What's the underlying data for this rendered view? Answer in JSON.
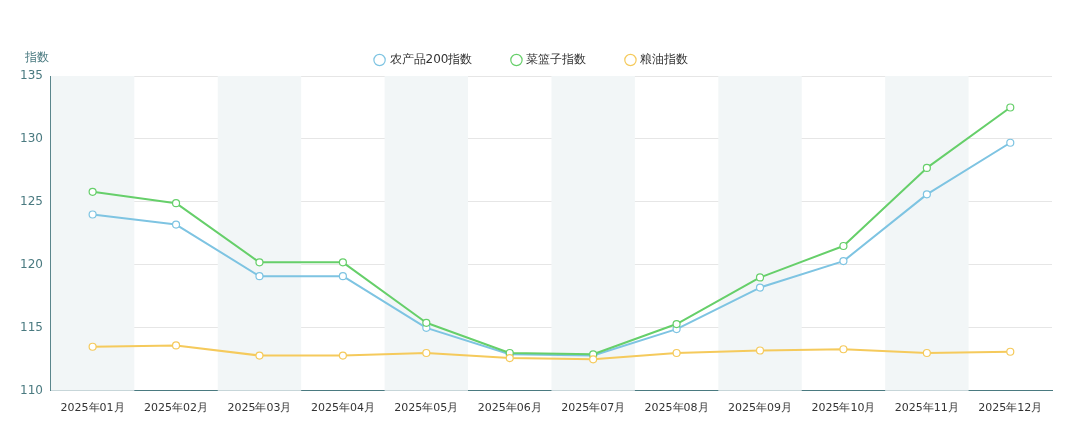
{
  "chart_data": {
    "type": "line",
    "ylabel": "指数",
    "categories": [
      "2025年01月",
      "2025年02月",
      "2025年03月",
      "2025年04月",
      "2025年05月",
      "2025年06月",
      "2025年07月",
      "2025年08月",
      "2025年09月",
      "2025年10月",
      "2025年11月",
      "2025年12月"
    ],
    "series": [
      {
        "name": "农产品200指数",
        "color": "#7ec4e2",
        "values": [
          124.0,
          123.2,
          119.1,
          119.1,
          115.0,
          112.9,
          112.8,
          114.9,
          118.2,
          120.3,
          125.6,
          129.7
        ]
      },
      {
        "name": "菜篮子指数",
        "color": "#66cf6a",
        "values": [
          125.8,
          124.9,
          120.2,
          120.2,
          115.4,
          113.0,
          112.9,
          115.3,
          119.0,
          121.5,
          127.7,
          132.5
        ]
      },
      {
        "name": "粮油指数",
        "color": "#f5ca5c",
        "values": [
          113.5,
          113.6,
          112.8,
          112.8,
          113.0,
          112.6,
          112.5,
          113.0,
          113.2,
          113.3,
          113.0,
          113.1
        ]
      }
    ],
    "ylim": [
      110,
      135
    ],
    "yticks": [
      110,
      115,
      120,
      125,
      130,
      135
    ],
    "grid": "y",
    "legend": "top",
    "marker": "circle",
    "line_style": "solid",
    "bands": [
      {
        "axis": "x",
        "from": "2025年01月",
        "to": "2025年01月",
        "color": "#f2f6f7"
      },
      {
        "axis": "x",
        "from": "2025年03月",
        "to": "2025年03月",
        "color": "#f2f6f7"
      },
      {
        "axis": "x",
        "from": "2025年05月",
        "to": "2025年05月",
        "color": "#f2f6f7"
      },
      {
        "axis": "x",
        "from": "2025年07月",
        "to": "2025年07月",
        "color": "#f2f6f7"
      },
      {
        "axis": "x",
        "from": "2025年09月",
        "to": "2025年09月",
        "color": "#f2f6f7"
      },
      {
        "axis": "x",
        "from": "2025年11月",
        "to": "2025年11月",
        "color": "#f2f6f7"
      }
    ]
  }
}
